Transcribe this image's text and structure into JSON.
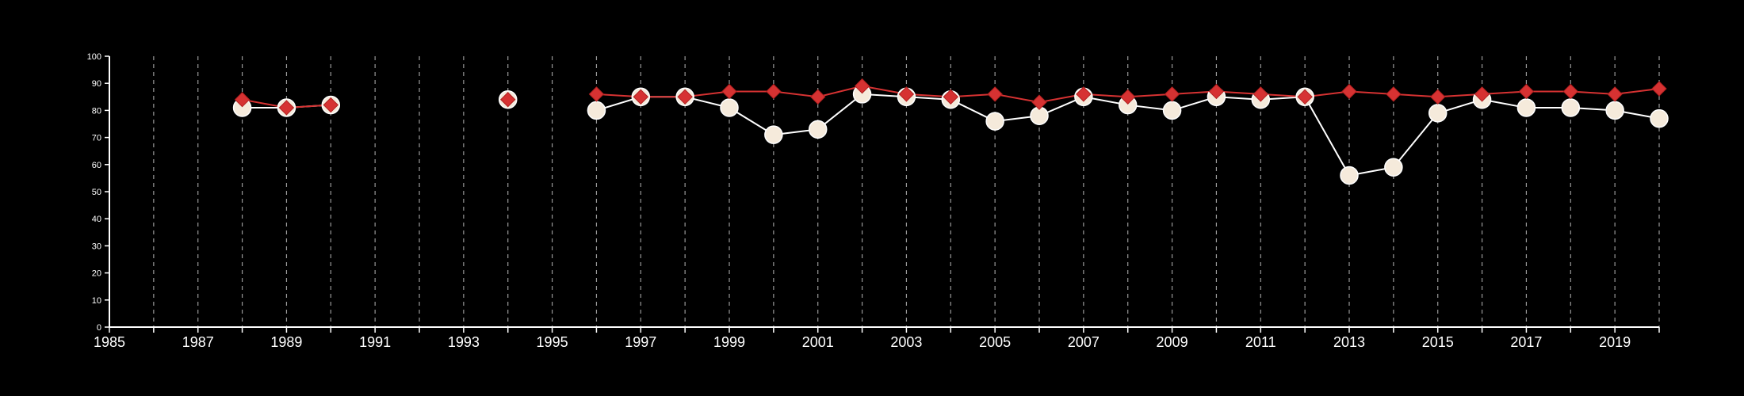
{
  "chart_data": {
    "type": "line",
    "title": "",
    "xlabel": "",
    "ylabel": "",
    "xlim": [
      1985,
      2020
    ],
    "ylim": [
      0,
      100
    ],
    "x_ticks": [
      1985,
      1987,
      1989,
      1991,
      1993,
      1995,
      1997,
      1999,
      2001,
      2003,
      2005,
      2007,
      2009,
      2011,
      2013,
      2015,
      2017,
      2019
    ],
    "y_ticks": [
      0,
      10,
      20,
      30,
      40,
      50,
      60,
      70,
      80,
      90,
      100
    ],
    "vertical_gridlines_years": [
      1986,
      1987,
      1988,
      1989,
      1990,
      1991,
      1992,
      1993,
      1994,
      1995,
      1996,
      1997,
      1998,
      1999,
      2000,
      2001,
      2002,
      2003,
      2004,
      2005,
      2006,
      2007,
      2008,
      2009,
      2010,
      2011,
      2012,
      2013,
      2014,
      2015,
      2016,
      2017,
      2018,
      2019,
      2020
    ],
    "grid": "vertical dashed",
    "legend": "none",
    "series": [
      {
        "marker": "circle",
        "color": "#f5eadb",
        "line_color": "#ffffff",
        "x": [
          1988,
          1989,
          1990,
          1994,
          1996,
          1997,
          1998,
          1999,
          2000,
          2001,
          2002,
          2003,
          2004,
          2005,
          2006,
          2007,
          2008,
          2009,
          2010,
          2011,
          2012,
          2013,
          2014,
          2015,
          2016,
          2017,
          2018,
          2019,
          2020
        ],
        "y": [
          81,
          81,
          82,
          84,
          80,
          85,
          85,
          81,
          71,
          73,
          86,
          85,
          84,
          76,
          78,
          85,
          82,
          80,
          85,
          84,
          85,
          56,
          59,
          79,
          84,
          81,
          81,
          80,
          77
        ]
      },
      {
        "marker": "diamond",
        "color": "#d63232",
        "line_color": "#d63232",
        "x": [
          1988,
          1989,
          1990,
          1994,
          1996,
          1997,
          1998,
          1999,
          2000,
          2001,
          2002,
          2003,
          2004,
          2005,
          2006,
          2007,
          2008,
          2009,
          2010,
          2011,
          2012,
          2013,
          2014,
          2015,
          2016,
          2017,
          2018,
          2019,
          2020
        ],
        "y": [
          84,
          81,
          82,
          84,
          86,
          85,
          85,
          87,
          87,
          85,
          89,
          86,
          85,
          86,
          83,
          86,
          85,
          86,
          87,
          86,
          85,
          87,
          86,
          85,
          86,
          87,
          87,
          86,
          88
        ]
      }
    ]
  }
}
